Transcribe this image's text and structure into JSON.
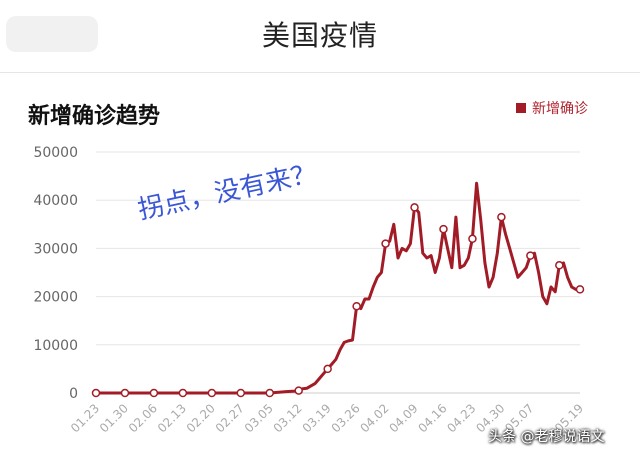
{
  "page": {
    "title": "美国疫情"
  },
  "watermark": "头条 @老穆说语文",
  "annotation": "拐点，没有来？",
  "colors": {
    "line": "#a11c26",
    "grid": "#e6e6e6",
    "axis_text": "#666666"
  },
  "chart_data": {
    "type": "line",
    "title": "新增确诊趋势",
    "legend": {
      "position": "top-right",
      "entries": [
        "新增确诊"
      ]
    },
    "grid": true,
    "xlabel": "",
    "ylabel": "",
    "ylim": [
      0,
      50000
    ],
    "y_ticks": [
      0,
      10000,
      20000,
      30000,
      40000,
      50000
    ],
    "x_tick_labels": [
      "01.23",
      "01.30",
      "02.06",
      "02.13",
      "02.20",
      "02.27",
      "03.05",
      "03.12",
      "03.19",
      "03.26",
      "04.02",
      "04.09",
      "04.16",
      "04.23",
      "04.30",
      "05.07",
      "05.19"
    ],
    "series": [
      {
        "name": "新增确诊",
        "points": [
          {
            "x": "01.23",
            "y": 0
          },
          {
            "x": "01.30",
            "y": 0
          },
          {
            "x": "02.06",
            "y": 0
          },
          {
            "x": "02.13",
            "y": 0
          },
          {
            "x": "02.20",
            "y": 0
          },
          {
            "x": "02.27",
            "y": 0
          },
          {
            "x": "03.05",
            "y": 0
          },
          {
            "x": "03.09",
            "y": 300
          },
          {
            "x": "03.11",
            "y": 400
          },
          {
            "x": "03.12",
            "y": 500
          },
          {
            "x": "03.13",
            "y": 900
          },
          {
            "x": "03.14",
            "y": 1000
          },
          {
            "x": "03.15",
            "y": 1500
          },
          {
            "x": "03.16",
            "y": 2000
          },
          {
            "x": "03.17",
            "y": 3000
          },
          {
            "x": "03.18",
            "y": 4000
          },
          {
            "x": "03.19",
            "y": 5000
          },
          {
            "x": "03.20",
            "y": 6000
          },
          {
            "x": "03.21",
            "y": 7000
          },
          {
            "x": "03.22",
            "y": 9000
          },
          {
            "x": "03.23",
            "y": 10500
          },
          {
            "x": "03.24",
            "y": 10800
          },
          {
            "x": "03.25",
            "y": 11000
          },
          {
            "x": "03.26",
            "y": 18000
          },
          {
            "x": "03.27",
            "y": 17500
          },
          {
            "x": "03.28",
            "y": 19500
          },
          {
            "x": "03.29",
            "y": 19500
          },
          {
            "x": "03.30",
            "y": 22000
          },
          {
            "x": "03.31",
            "y": 24000
          },
          {
            "x": "04.01",
            "y": 25000
          },
          {
            "x": "04.02",
            "y": 31000
          },
          {
            "x": "04.03",
            "y": 31500
          },
          {
            "x": "04.04",
            "y": 35000
          },
          {
            "x": "04.05",
            "y": 28000
          },
          {
            "x": "04.06",
            "y": 30000
          },
          {
            "x": "04.07",
            "y": 29500
          },
          {
            "x": "04.08",
            "y": 31000
          },
          {
            "x": "04.09",
            "y": 38500
          },
          {
            "x": "04.10",
            "y": 37500
          },
          {
            "x": "04.11",
            "y": 29000
          },
          {
            "x": "04.12",
            "y": 28000
          },
          {
            "x": "04.13",
            "y": 28500
          },
          {
            "x": "04.14",
            "y": 25000
          },
          {
            "x": "04.15",
            "y": 28000
          },
          {
            "x": "04.16",
            "y": 34000
          },
          {
            "x": "04.17",
            "y": 30000
          },
          {
            "x": "04.18",
            "y": 26000
          },
          {
            "x": "04.19",
            "y": 36500
          },
          {
            "x": "04.20",
            "y": 26000
          },
          {
            "x": "04.21",
            "y": 26500
          },
          {
            "x": "04.22",
            "y": 28000
          },
          {
            "x": "04.23",
            "y": 32000
          },
          {
            "x": "04.24",
            "y": 43500
          },
          {
            "x": "04.25",
            "y": 36000
          },
          {
            "x": "04.26",
            "y": 27000
          },
          {
            "x": "04.27",
            "y": 22000
          },
          {
            "x": "04.28",
            "y": 24000
          },
          {
            "x": "04.29",
            "y": 29000
          },
          {
            "x": "04.30",
            "y": 36500
          },
          {
            "x": "05.01",
            "y": 33000
          },
          {
            "x": "05.02",
            "y": 30000
          },
          {
            "x": "05.03",
            "y": 27000
          },
          {
            "x": "05.04",
            "y": 24000
          },
          {
            "x": "05.05",
            "y": 25000
          },
          {
            "x": "05.06",
            "y": 26000
          },
          {
            "x": "05.07",
            "y": 28500
          },
          {
            "x": "05.08",
            "y": 29000
          },
          {
            "x": "05.09",
            "y": 25000
          },
          {
            "x": "05.10",
            "y": 20000
          },
          {
            "x": "05.11",
            "y": 18500
          },
          {
            "x": "05.12",
            "y": 22000
          },
          {
            "x": "05.13",
            "y": 21000
          },
          {
            "x": "05.14",
            "y": 26500
          },
          {
            "x": "05.15",
            "y": 27000
          },
          {
            "x": "05.16",
            "y": 24000
          },
          {
            "x": "05.17",
            "y": 22000
          },
          {
            "x": "05.18",
            "y": 21500
          },
          {
            "x": "05.19",
            "y": 21500
          }
        ],
        "markers": [
          {
            "x": "01.23",
            "y": 0
          },
          {
            "x": "01.30",
            "y": 0
          },
          {
            "x": "02.06",
            "y": 0
          },
          {
            "x": "02.13",
            "y": 0
          },
          {
            "x": "02.20",
            "y": 0
          },
          {
            "x": "02.27",
            "y": 0
          },
          {
            "x": "03.05",
            "y": 0
          },
          {
            "x": "03.12",
            "y": 500
          },
          {
            "x": "03.19",
            "y": 5000
          },
          {
            "x": "03.26",
            "y": 18000
          },
          {
            "x": "04.02",
            "y": 31000
          },
          {
            "x": "04.09",
            "y": 38500
          },
          {
            "x": "04.16",
            "y": 34000
          },
          {
            "x": "04.23",
            "y": 32000
          },
          {
            "x": "04.30",
            "y": 36500
          },
          {
            "x": "05.07",
            "y": 28500
          },
          {
            "x": "05.14",
            "y": 26500
          },
          {
            "x": "05.19",
            "y": 21500
          }
        ]
      }
    ]
  }
}
